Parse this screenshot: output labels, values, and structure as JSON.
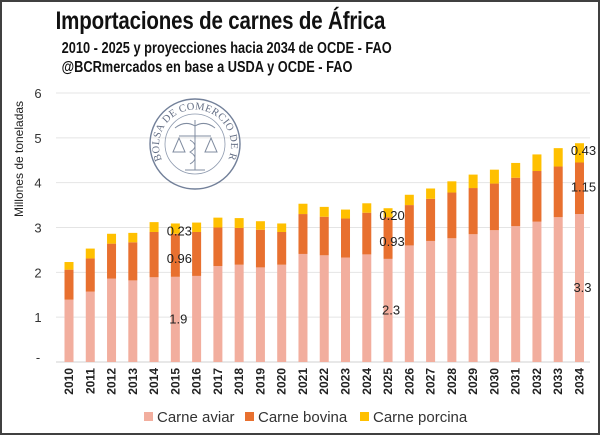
{
  "titles": {
    "title": "Importaciones de carnes de África",
    "subtitle": "2010 - 2025 y proyecciones hacia 2034 de OCDE - FAO",
    "source": "@BCRmercados en base a USDA y OCDE - FAO"
  },
  "watermark": {
    "text": "BOLSA DE COMERCIO DE ROSARIO"
  },
  "chart_data": {
    "type": "bar",
    "stacked": true,
    "title": "Importaciones de carnes de África",
    "subtitle": "2010 - 2025 y proyecciones hacia 2034 de OCDE - FAO",
    "xlabel": "",
    "ylabel": "Millones de toneladas",
    "ylim": [
      0,
      6
    ],
    "yticks": [
      {
        "value": 0,
        "label": "-"
      },
      {
        "value": 1,
        "label": "1"
      },
      {
        "value": 2,
        "label": "2"
      },
      {
        "value": 3,
        "label": "3"
      },
      {
        "value": 4,
        "label": "4"
      },
      {
        "value": 5,
        "label": "5"
      },
      {
        "value": 6,
        "label": "6"
      }
    ],
    "grid": true,
    "legend_position": "bottom",
    "categories": [
      "2010",
      "2011",
      "2012",
      "2013",
      "2014",
      "2015",
      "2016",
      "2017",
      "2018",
      "2019",
      "2020",
      "2021",
      "2022",
      "2023",
      "2024",
      "2025",
      "2026",
      "2027",
      "2028",
      "2029",
      "2030",
      "2031",
      "2032",
      "2033",
      "2034"
    ],
    "series": [
      {
        "name": "Carne aviar",
        "color": "#F2AE9E",
        "values": [
          1.39,
          1.57,
          1.86,
          1.82,
          1.89,
          1.9,
          1.92,
          2.14,
          2.17,
          2.11,
          2.17,
          2.41,
          2.38,
          2.33,
          2.4,
          2.3,
          2.6,
          2.7,
          2.76,
          2.85,
          2.94,
          3.03,
          3.13,
          3.23,
          3.3
        ]
      },
      {
        "name": "Carne bovina",
        "color": "#E8702F",
        "values": [
          0.67,
          0.74,
          0.78,
          0.85,
          1.01,
          0.96,
          0.98,
          0.86,
          0.82,
          0.84,
          0.73,
          0.89,
          0.86,
          0.87,
          0.93,
          0.93,
          0.9,
          0.94,
          1.02,
          1.03,
          1.04,
          1.08,
          1.13,
          1.13,
          1.15
        ]
      },
      {
        "name": "Carne porcina",
        "color": "#FFC000",
        "values": [
          0.17,
          0.22,
          0.22,
          0.21,
          0.22,
          0.23,
          0.21,
          0.22,
          0.22,
          0.19,
          0.19,
          0.23,
          0.22,
          0.2,
          0.21,
          0.2,
          0.23,
          0.23,
          0.25,
          0.3,
          0.31,
          0.33,
          0.37,
          0.41,
          0.43
        ]
      }
    ],
    "data_labels": [
      {
        "category": "2015",
        "series": "Carne porcina",
        "label": "0.23"
      },
      {
        "category": "2015",
        "series": "Carne bovina",
        "label": "0.96"
      },
      {
        "category": "2015",
        "series": "Carne aviar",
        "label": "1.9"
      },
      {
        "category": "2025",
        "series": "Carne porcina",
        "label": "0.20"
      },
      {
        "category": "2025",
        "series": "Carne bovina",
        "label": "0.93"
      },
      {
        "category": "2025",
        "series": "Carne aviar",
        "label": "2.3"
      },
      {
        "category": "2034",
        "series": "Carne porcina",
        "label": "0.43"
      },
      {
        "category": "2034",
        "series": "Carne bovina",
        "label": "1.15"
      },
      {
        "category": "2034",
        "series": "Carne aviar",
        "label": "3.3"
      }
    ],
    "legend": [
      "Carne aviar",
      "Carne bovina",
      "Carne porcina"
    ]
  }
}
